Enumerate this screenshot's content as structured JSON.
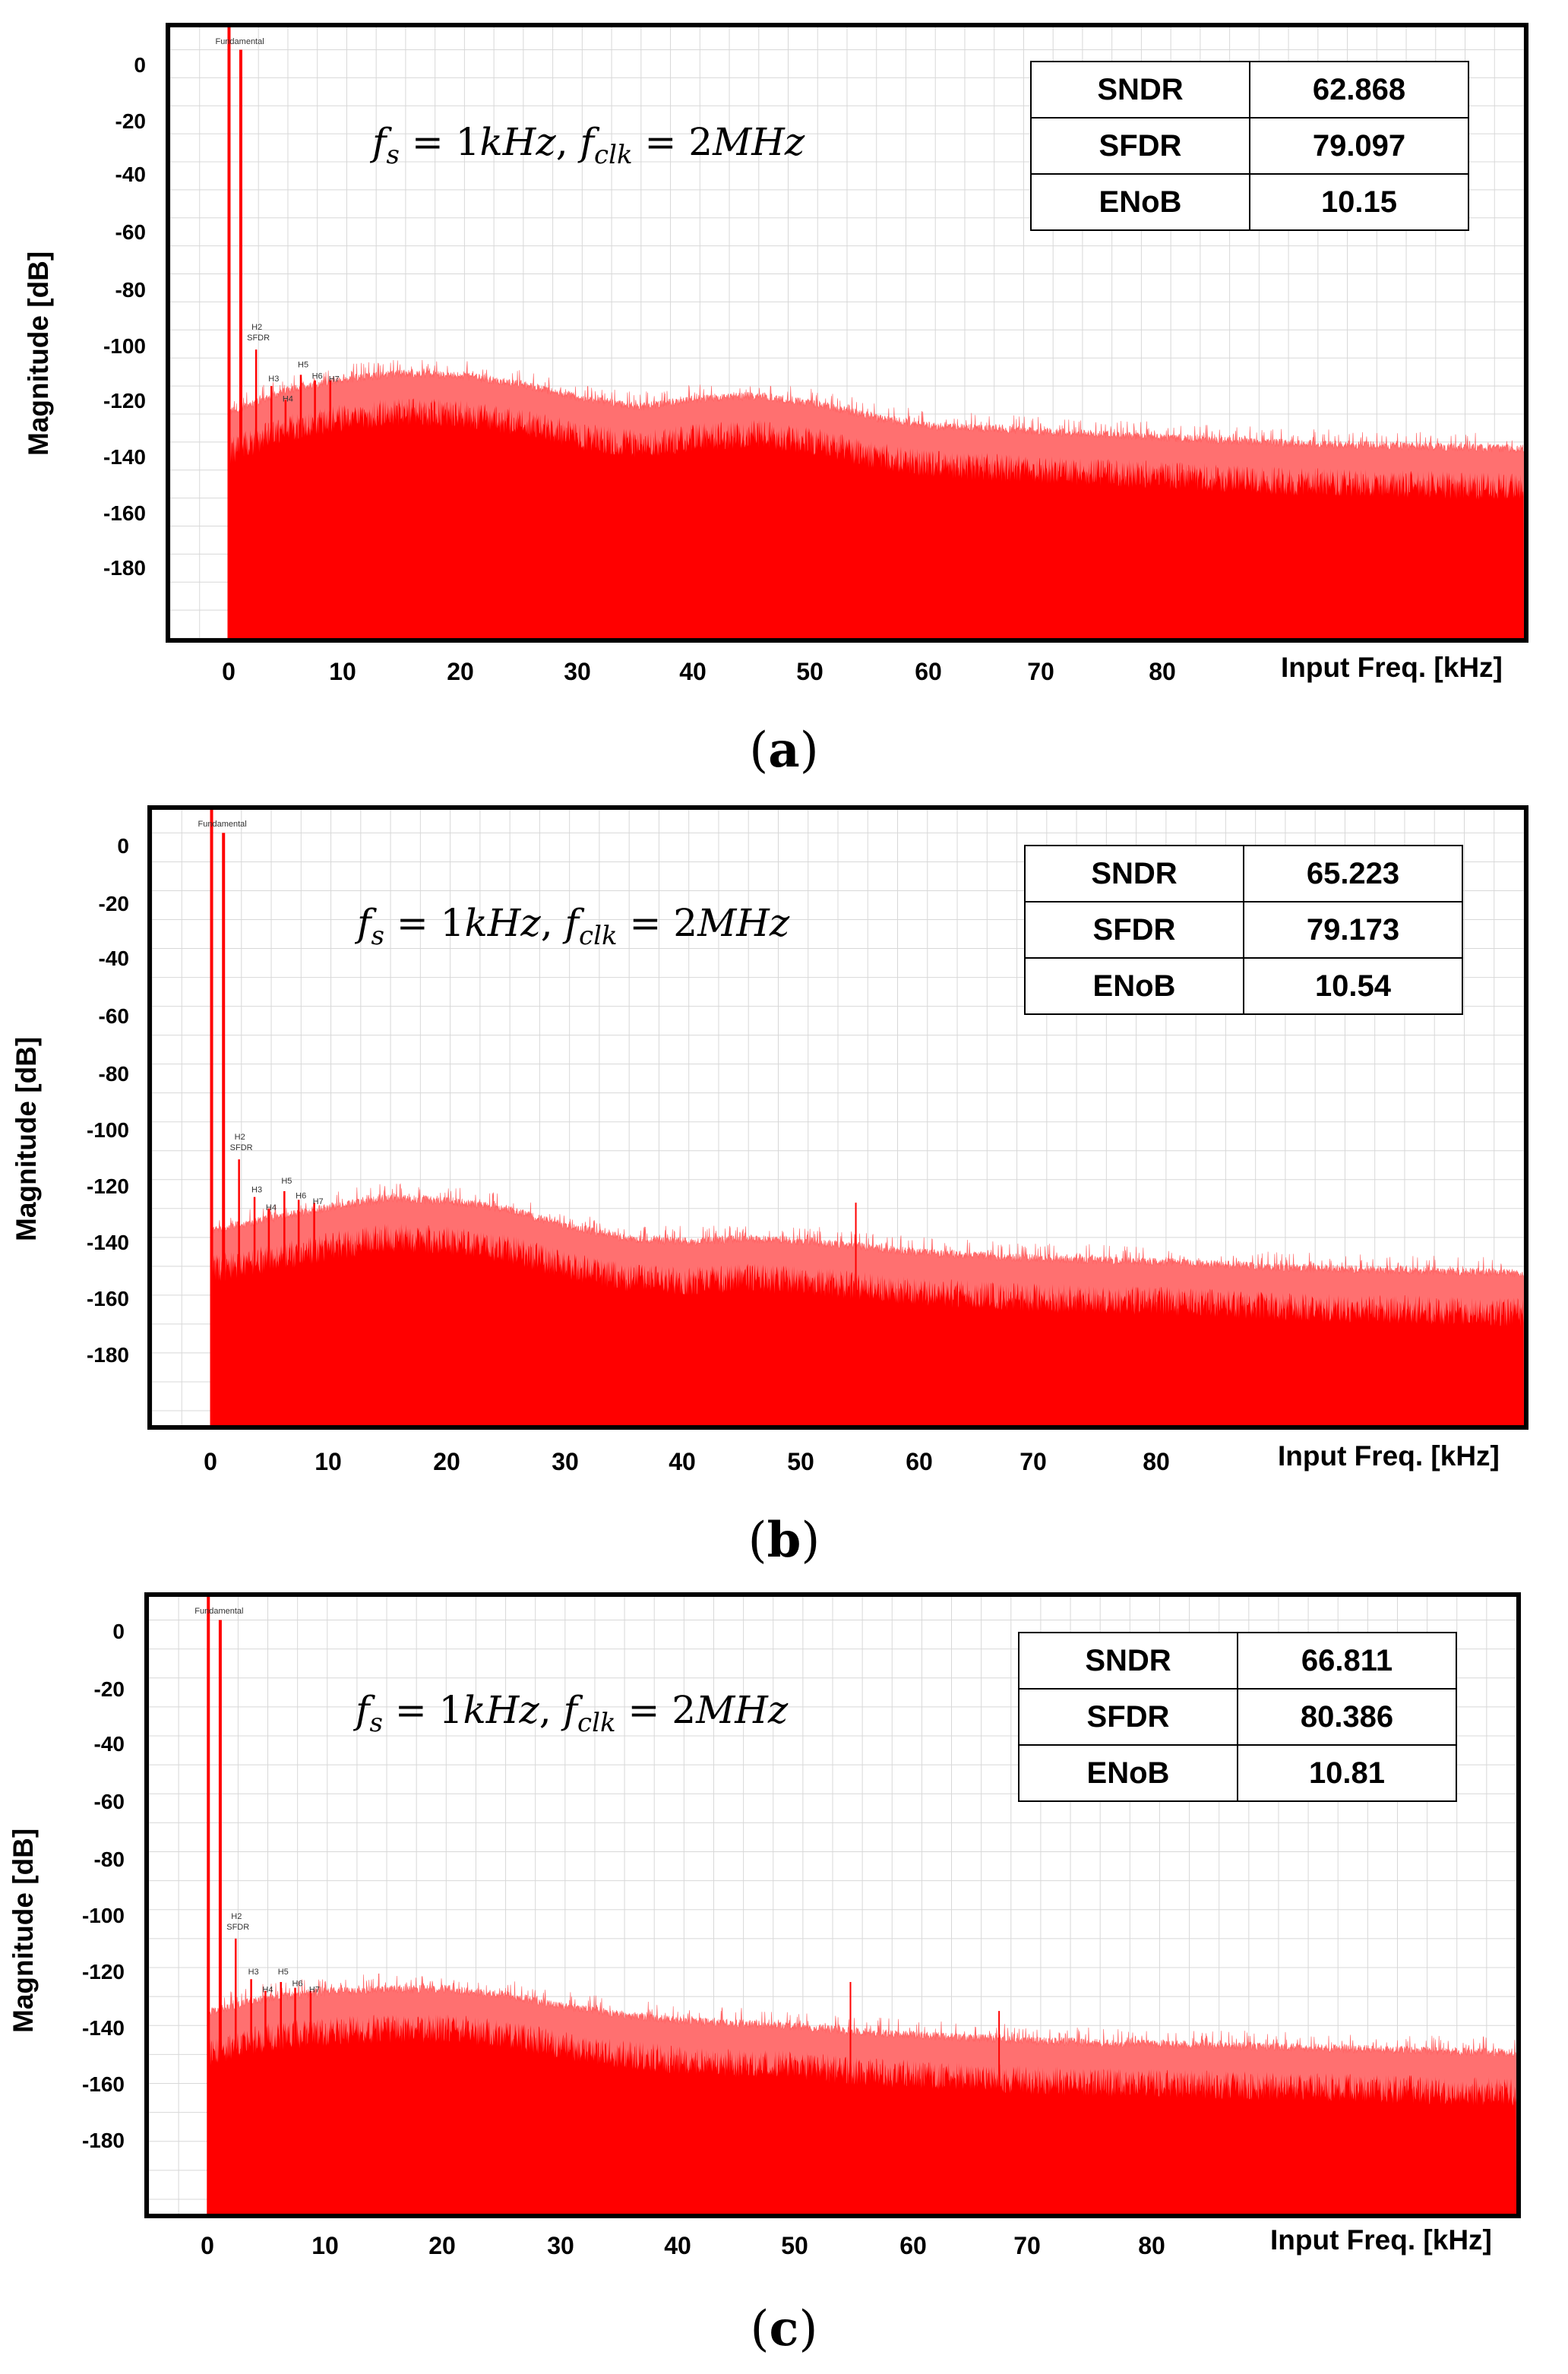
{
  "chart_data": [
    {
      "type": "bar",
      "panel": "(a)",
      "xlabel": "Input Freq. [kHz]",
      "ylabel": "Magnitude [dB]",
      "xticks": [
        0,
        10,
        20,
        30,
        40,
        50,
        60,
        70,
        80
      ],
      "yticks": [
        0,
        -20,
        -40,
        -60,
        -80,
        -100,
        -120,
        -140,
        -160,
        -180
      ],
      "xlim": [
        -5,
        110
      ],
      "ylim": [
        -210,
        8
      ],
      "formula": "f_s = 1kHz, f_clk = 2MHz",
      "metrics": [
        {
          "name": "SNDR",
          "value": "62.868"
        },
        {
          "name": "SFDR",
          "value": "79.097"
        },
        {
          "name": "ENoB",
          "value": "10.15"
        }
      ],
      "annotations": [
        "Fundamental",
        "H2",
        "SFDR",
        "H3",
        "H4",
        "H5",
        "H6",
        "H7"
      ],
      "peaks": [
        {
          "x": 0.0,
          "y": 8
        },
        {
          "x": 1.0,
          "y": 0
        },
        {
          "x": 2.3,
          "y": -107
        },
        {
          "x": 3.6,
          "y": -120
        },
        {
          "x": 4.8,
          "y": -125
        },
        {
          "x": 6.1,
          "y": -116
        },
        {
          "x": 7.3,
          "y": -118
        },
        {
          "x": 8.6,
          "y": -118
        }
      ],
      "floor_profile": {
        "x": [
          0,
          5,
          10,
          15,
          20,
          25,
          30,
          35,
          40,
          45,
          50,
          55,
          60,
          70,
          80,
          90,
          100,
          110
        ],
        "y": [
          -130,
          -122,
          -118,
          -116,
          -117,
          -120,
          -125,
          -128,
          -125,
          -124,
          -127,
          -132,
          -135,
          -137,
          -139,
          -141,
          -142,
          -143
        ]
      },
      "spurs": []
    },
    {
      "type": "bar",
      "panel": "(b)",
      "xlabel": "Input Freq. [kHz]",
      "ylabel": "Magnitude [dB]",
      "xticks": [
        0,
        10,
        20,
        30,
        40,
        50,
        60,
        70,
        80
      ],
      "yticks": [
        0,
        -20,
        -40,
        -60,
        -80,
        -100,
        -120,
        -140,
        -160,
        -180
      ],
      "xlim": [
        -5,
        110
      ],
      "ylim": [
        -205,
        8
      ],
      "formula": "f_s = 1kHz, f_clk = 2MHz",
      "metrics": [
        {
          "name": "SNDR",
          "value": "65.223"
        },
        {
          "name": "SFDR",
          "value": "79.173"
        },
        {
          "name": "ENoB",
          "value": "10.54"
        }
      ],
      "annotations": [
        "Fundamental",
        "H2",
        "SFDR",
        "H3",
        "H4",
        "H5",
        "H6",
        "H7"
      ],
      "peaks": [
        {
          "x": 0.0,
          "y": 8
        },
        {
          "x": 1.0,
          "y": 0
        },
        {
          "x": 2.3,
          "y": -113
        },
        {
          "x": 3.6,
          "y": -126
        },
        {
          "x": 4.8,
          "y": -130
        },
        {
          "x": 6.1,
          "y": -124
        },
        {
          "x": 7.3,
          "y": -127
        },
        {
          "x": 8.6,
          "y": -128
        }
      ],
      "floor_profile": {
        "x": [
          0,
          5,
          10,
          15,
          20,
          25,
          30,
          35,
          40,
          45,
          50,
          55,
          60,
          70,
          80,
          90,
          100,
          110
        ],
        "y": [
          -138,
          -134,
          -130,
          -127,
          -128,
          -131,
          -137,
          -141,
          -142,
          -141,
          -142,
          -144,
          -146,
          -148,
          -149,
          -151,
          -152,
          -153
        ]
      },
      "spurs": [
        {
          "x": 54.0,
          "y": -128
        }
      ]
    },
    {
      "type": "bar",
      "panel": "(c)",
      "xlabel": "Input Freq. [kHz]",
      "ylabel": "Magnitude [dB]",
      "xticks": [
        0,
        10,
        20,
        30,
        40,
        50,
        60,
        70,
        80
      ],
      "yticks": [
        0,
        -20,
        -40,
        -60,
        -80,
        -100,
        -120,
        -140,
        -160,
        -180
      ],
      "xlim": [
        -5,
        110
      ],
      "ylim": [
        -205,
        8
      ],
      "formula": "f_s = 1kHz, f_clk = 2MHz",
      "metrics": [
        {
          "name": "SNDR",
          "value": "66.811"
        },
        {
          "name": "SFDR",
          "value": "80.386"
        },
        {
          "name": "ENoB",
          "value": "10.81"
        }
      ],
      "annotations": [
        "Fundamental",
        "H2",
        "SFDR",
        "H3",
        "H4",
        "H5",
        "H6",
        "H7"
      ],
      "peaks": [
        {
          "x": 0.0,
          "y": 8
        },
        {
          "x": 1.0,
          "y": 0
        },
        {
          "x": 2.3,
          "y": -110
        },
        {
          "x": 3.6,
          "y": -124
        },
        {
          "x": 4.8,
          "y": -128
        },
        {
          "x": 6.1,
          "y": -125
        },
        {
          "x": 7.3,
          "y": -127
        },
        {
          "x": 8.6,
          "y": -128
        }
      ],
      "floor_profile": {
        "x": [
          0,
          5,
          10,
          15,
          20,
          25,
          30,
          35,
          40,
          45,
          50,
          55,
          60,
          70,
          80,
          90,
          100,
          110
        ],
        "y": [
          -136,
          -131,
          -129,
          -128,
          -128,
          -130,
          -134,
          -137,
          -139,
          -140,
          -141,
          -143,
          -144,
          -146,
          -147,
          -148,
          -149,
          -150
        ]
      },
      "spurs": [
        {
          "x": 54.0,
          "y": -125
        },
        {
          "x": 66.5,
          "y": -135
        }
      ]
    }
  ],
  "colors": {
    "spectrum": "#ff0000",
    "grid": "#d8d8d8",
    "frame": "#000000"
  }
}
